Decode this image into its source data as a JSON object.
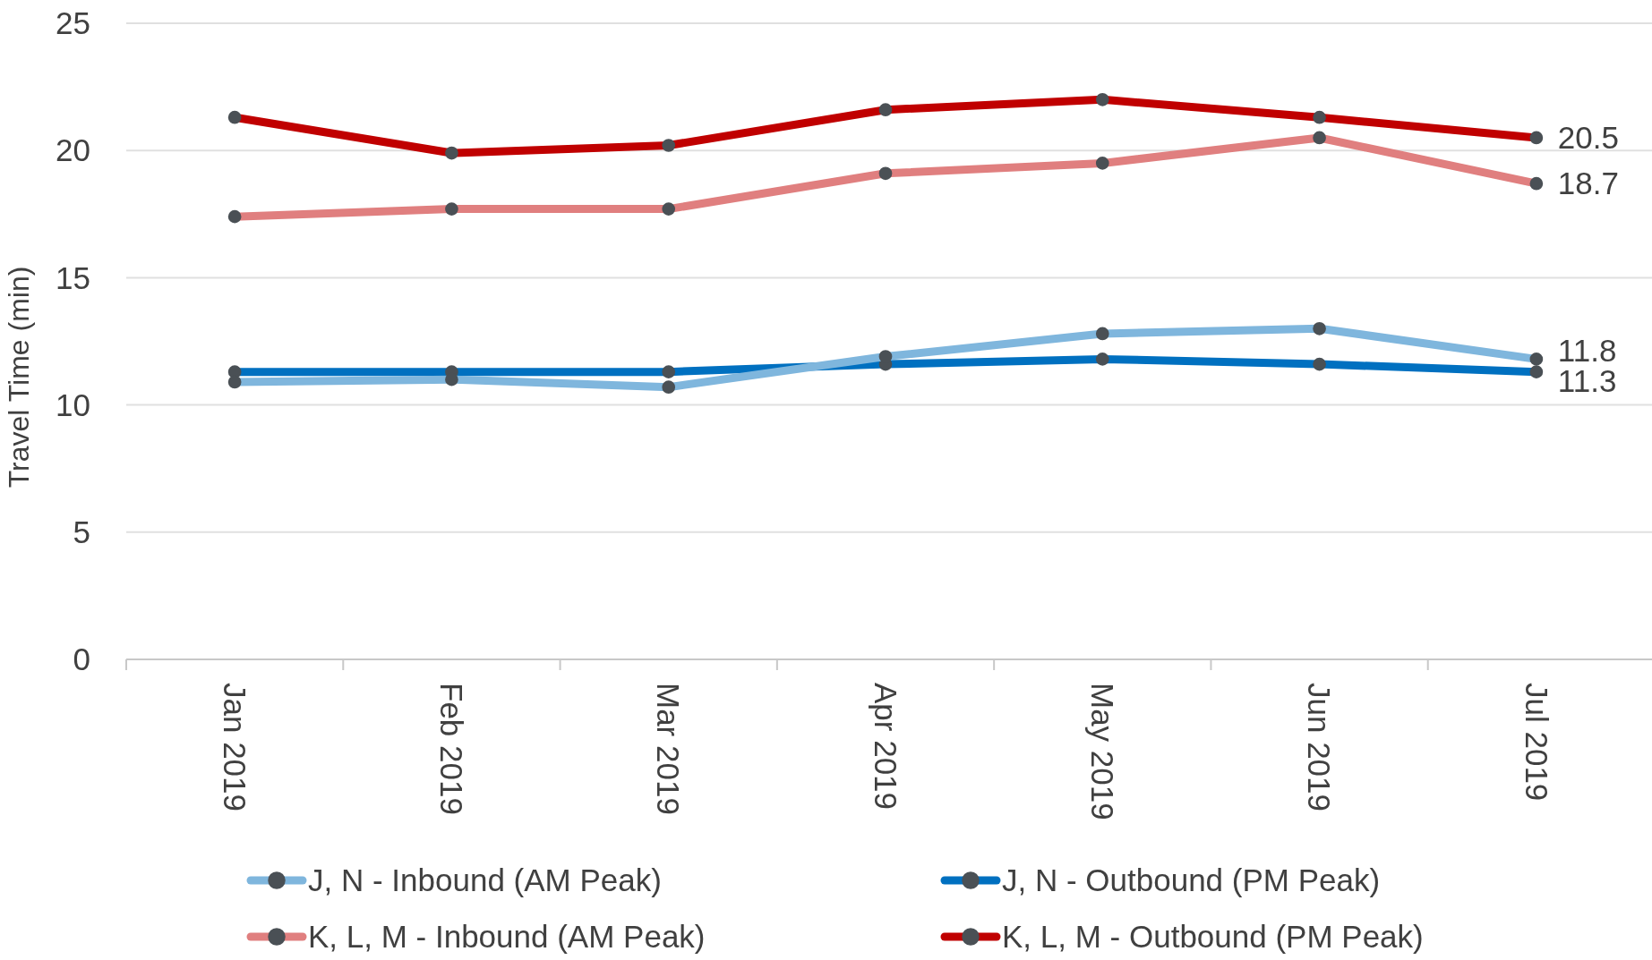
{
  "chart_data": {
    "type": "line",
    "ylabel": "Travel Time (min)",
    "categories": [
      "Jan 2019",
      "Feb 2019",
      "Mar 2019",
      "Apr 2019",
      "May 2019",
      "Jun 2019",
      "Jul 2019"
    ],
    "series": [
      {
        "name": "J, N - Inbound (AM Peak)",
        "color": "#7fb6dd",
        "values": [
          10.9,
          11.0,
          10.7,
          11.9,
          12.8,
          13.0,
          11.8
        ],
        "value_labels": [
          null,
          null,
          null,
          null,
          null,
          null,
          "11.8"
        ]
      },
      {
        "name": "J, N - Outbound (PM Peak)",
        "color": "#0070c0",
        "values": [
          11.3,
          11.3,
          11.3,
          11.6,
          11.8,
          11.6,
          11.3
        ],
        "value_labels": [
          null,
          null,
          null,
          null,
          null,
          null,
          "11.3"
        ]
      },
      {
        "name": "K, L, M - Inbound (AM Peak)",
        "color": "#e07f7f",
        "values": [
          17.4,
          17.7,
          17.7,
          19.1,
          19.5,
          20.5,
          18.7
        ],
        "value_labels": [
          null,
          null,
          null,
          null,
          null,
          null,
          "18.7"
        ]
      },
      {
        "name": "K, L, M - Outbound (PM Peak)",
        "color": "#c00000",
        "values": [
          21.3,
          19.9,
          20.2,
          21.6,
          22.0,
          21.3,
          20.5
        ],
        "value_labels": [
          null,
          null,
          null,
          null,
          null,
          null,
          "20.5"
        ]
      }
    ],
    "ylim": [
      0,
      25
    ],
    "yticks": [
      0,
      5,
      10,
      15,
      20,
      25
    ],
    "grid": "y",
    "legend": "bottom",
    "marker": "circle",
    "line_style": "solid"
  }
}
